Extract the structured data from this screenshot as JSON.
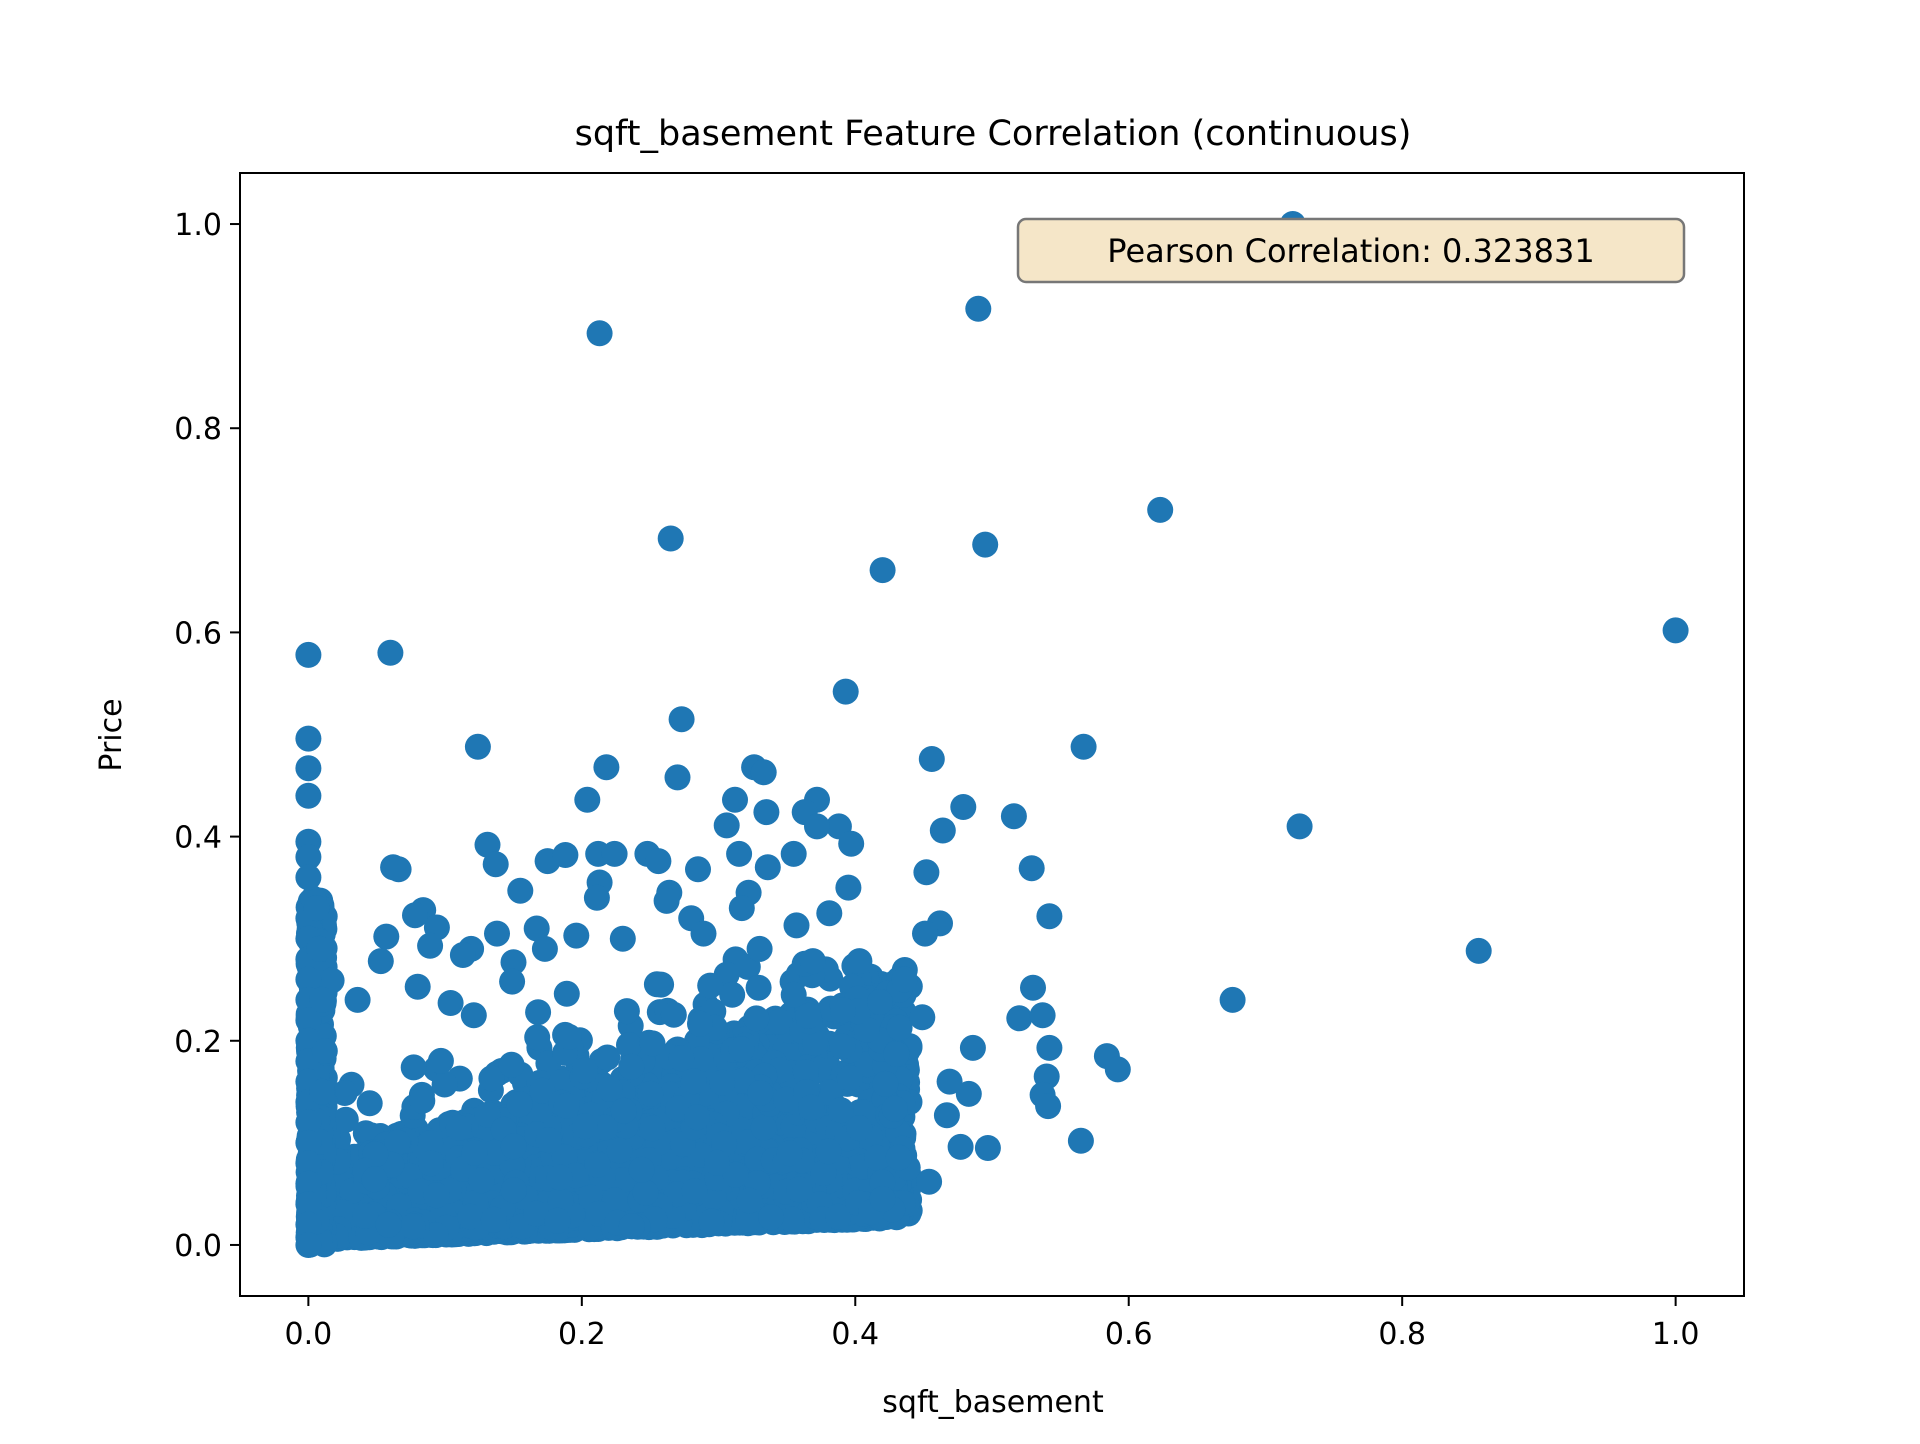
{
  "chart_data": {
    "type": "scatter",
    "title": "sqft_basement Feature Correlation (continuous)",
    "xlabel": "sqft_basement",
    "ylabel": "Price",
    "xlim": [
      -0.05,
      1.05
    ],
    "ylim": [
      -0.05,
      1.05
    ],
    "xticks": [
      0.0,
      0.2,
      0.4,
      0.6,
      0.8,
      1.0
    ],
    "yticks": [
      0.0,
      0.2,
      0.4,
      0.6,
      0.8,
      1.0
    ],
    "xtick_labels": [
      "0.0",
      "0.2",
      "0.4",
      "0.6",
      "0.8",
      "1.0"
    ],
    "ytick_labels": [
      "0.0",
      "0.2",
      "0.4",
      "0.6",
      "0.8",
      "1.0"
    ],
    "grid": false,
    "point_color": "#1f77b4",
    "annotation": {
      "text": "Pearson Correlation: 0.323831",
      "placement": "top-right",
      "background": "#f5e6c8",
      "border": "#777777"
    },
    "points": [
      [
        0.72,
        1.0
      ],
      [
        0.49,
        0.917
      ],
      [
        0.213,
        0.893
      ],
      [
        0.623,
        0.72
      ],
      [
        0.265,
        0.692
      ],
      [
        0.495,
        0.686
      ],
      [
        0.42,
        0.661
      ],
      [
        1.0,
        0.602
      ],
      [
        0.0,
        0.578
      ],
      [
        0.06,
        0.58
      ],
      [
        0.393,
        0.542
      ],
      [
        0.273,
        0.515
      ],
      [
        0.0,
        0.496
      ],
      [
        0.124,
        0.488
      ],
      [
        0.567,
        0.488
      ],
      [
        0.456,
        0.476
      ],
      [
        0.218,
        0.468
      ],
      [
        0.326,
        0.468
      ],
      [
        0.333,
        0.463
      ],
      [
        0.0,
        0.467
      ],
      [
        0.27,
        0.458
      ],
      [
        0.204,
        0.436
      ],
      [
        0.312,
        0.436
      ],
      [
        0.372,
        0.436
      ],
      [
        0.0,
        0.44
      ],
      [
        0.725,
        0.41
      ],
      [
        0.516,
        0.42
      ],
      [
        0.479,
        0.429
      ],
      [
        0.335,
        0.424
      ],
      [
        0.306,
        0.411
      ],
      [
        0.363,
        0.424
      ],
      [
        0.388,
        0.41
      ],
      [
        0.372,
        0.41
      ],
      [
        0.464,
        0.406
      ],
      [
        0.131,
        0.392
      ],
      [
        0.397,
        0.393
      ],
      [
        0.137,
        0.373
      ],
      [
        0.062,
        0.37
      ],
      [
        0.066,
        0.368
      ],
      [
        0.212,
        0.383
      ],
      [
        0.224,
        0.383
      ],
      [
        0.248,
        0.383
      ],
      [
        0.256,
        0.376
      ],
      [
        0.285,
        0.368
      ],
      [
        0.315,
        0.383
      ],
      [
        0.336,
        0.37
      ],
      [
        0.355,
        0.383
      ],
      [
        0.529,
        0.369
      ],
      [
        0.452,
        0.365
      ],
      [
        0.175,
        0.376
      ],
      [
        0.188,
        0.382
      ],
      [
        0.0,
        0.395
      ],
      [
        0.0,
        0.38
      ],
      [
        0.0,
        0.36
      ],
      [
        0.395,
        0.35
      ],
      [
        0.264,
        0.345
      ],
      [
        0.322,
        0.345
      ],
      [
        0.213,
        0.355
      ],
      [
        0.155,
        0.347
      ],
      [
        0.084,
        0.328
      ],
      [
        0.078,
        0.323
      ],
      [
        0.211,
        0.34
      ],
      [
        0.262,
        0.337
      ],
      [
        0.381,
        0.325
      ],
      [
        0.542,
        0.322
      ],
      [
        0.462,
        0.315
      ],
      [
        0.451,
        0.305
      ],
      [
        0.057,
        0.302
      ],
      [
        0.094,
        0.311
      ],
      [
        0.119,
        0.29
      ],
      [
        0.138,
        0.305
      ],
      [
        0.167,
        0.31
      ],
      [
        0.196,
        0.303
      ],
      [
        0.28,
        0.32
      ],
      [
        0.317,
        0.33
      ],
      [
        0.357,
        0.313
      ],
      [
        0.053,
        0.278
      ],
      [
        0.017,
        0.259
      ],
      [
        0.036,
        0.24
      ],
      [
        0.089,
        0.293
      ],
      [
        0.113,
        0.284
      ],
      [
        0.15,
        0.277
      ],
      [
        0.173,
        0.29
      ],
      [
        0.23,
        0.3
      ],
      [
        0.289,
        0.305
      ],
      [
        0.33,
        0.29
      ],
      [
        0.369,
        0.278
      ],
      [
        0.403,
        0.278
      ],
      [
        0.436,
        0.26
      ],
      [
        0.856,
        0.288
      ],
      [
        0.676,
        0.24
      ],
      [
        0.08,
        0.253
      ],
      [
        0.104,
        0.237
      ],
      [
        0.149,
        0.258
      ],
      [
        0.189,
        0.246
      ],
      [
        0.258,
        0.255
      ],
      [
        0.31,
        0.245
      ],
      [
        0.355,
        0.245
      ],
      [
        0.418,
        0.238
      ],
      [
        0.53,
        0.252
      ],
      [
        0.52,
        0.222
      ],
      [
        0.537,
        0.225
      ],
      [
        0.449,
        0.223
      ],
      [
        0.391,
        0.23
      ],
      [
        0.121,
        0.225
      ],
      [
        0.168,
        0.228
      ],
      [
        0.542,
        0.193
      ],
      [
        0.486,
        0.193
      ],
      [
        0.584,
        0.185
      ],
      [
        0.592,
        0.172
      ],
      [
        0.54,
        0.165
      ],
      [
        0.469,
        0.16
      ],
      [
        0.483,
        0.148
      ],
      [
        0.537,
        0.147
      ],
      [
        0.541,
        0.136
      ],
      [
        0.467,
        0.127
      ],
      [
        0.565,
        0.102
      ],
      [
        0.497,
        0.095
      ],
      [
        0.477,
        0.096
      ],
      [
        0.454,
        0.062
      ],
      [
        0.42,
        0.045
      ],
      [
        0.0,
        0.32
      ],
      [
        0.0,
        0.3
      ],
      [
        0.0,
        0.28
      ],
      [
        0.0,
        0.26
      ],
      [
        0.0,
        0.24
      ],
      [
        0.0,
        0.22
      ],
      [
        0.0,
        0.2
      ],
      [
        0.0,
        0.18
      ],
      [
        0.0,
        0.16
      ],
      [
        0.0,
        0.14
      ],
      [
        0.0,
        0.12
      ],
      [
        0.0,
        0.1
      ],
      [
        0.0,
        0.08
      ],
      [
        0.0,
        0.06
      ],
      [
        0.0,
        0.04
      ],
      [
        0.0,
        0.02
      ],
      [
        0.0,
        0.0
      ],
      [
        0.006,
        0.33
      ],
      [
        0.008,
        0.29
      ],
      [
        0.01,
        0.24
      ],
      [
        0.012,
        0.19
      ],
      [
        0.01,
        0.15
      ]
    ],
    "dense_region": "cloud between x 0.0 and 0.45, y 0.0 and 0.25"
  }
}
